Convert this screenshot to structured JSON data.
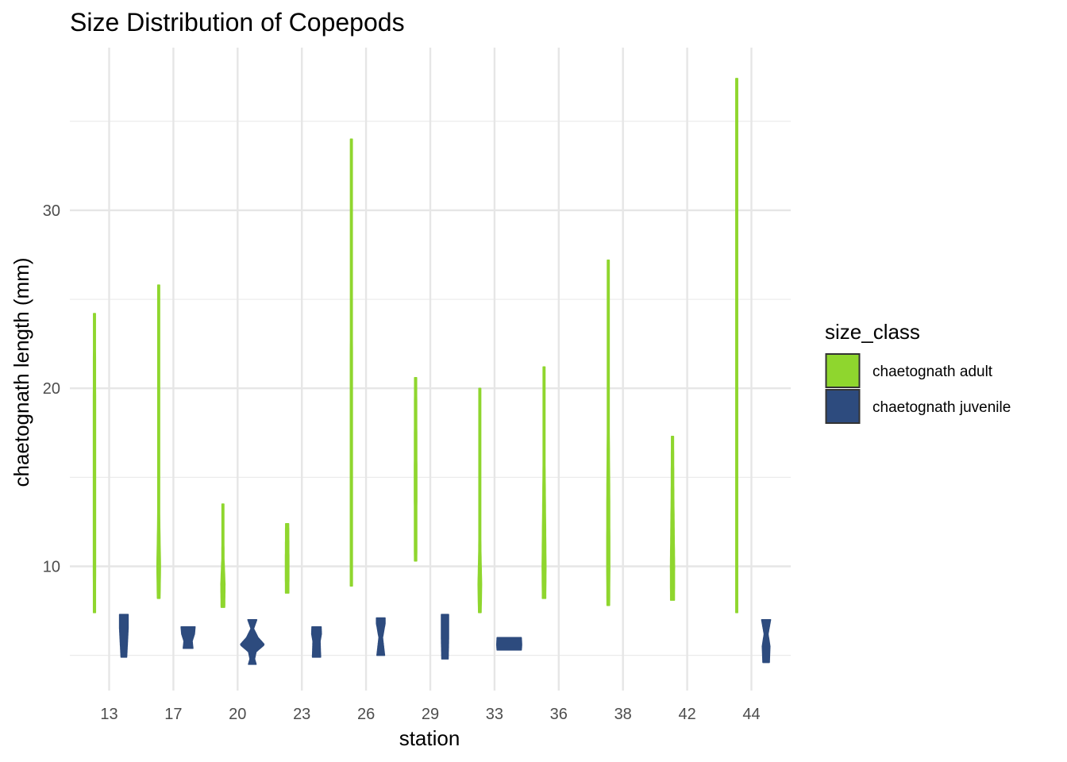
{
  "chart_data": {
    "type": "violin",
    "title": "Size Distribution of Copepods",
    "xlabel": "station",
    "ylabel": "chaetognath length (mm)",
    "categories": [
      "13",
      "17",
      "20",
      "23",
      "26",
      "29",
      "33",
      "36",
      "38",
      "42",
      "44"
    ],
    "ylim": [
      3,
      40
    ],
    "yticks": [
      10,
      20,
      30
    ],
    "grid": true,
    "legend": {
      "title": "size_class",
      "position": "right",
      "entries": [
        "chaetognath adult",
        "chaetognath juvenile"
      ]
    },
    "series": [
      {
        "name": "chaetognath adult",
        "color": "#8fd62e",
        "side": "left",
        "violins": [
          {
            "category": "13",
            "min": 7.4,
            "max": 24.2,
            "profile": [
              [
                7.4,
                0.08
              ],
              [
                12,
                0.09
              ],
              [
                18,
                0.09
              ],
              [
                24.2,
                0.07
              ]
            ]
          },
          {
            "category": "17",
            "min": 8.2,
            "max": 25.8,
            "profile": [
              [
                8.2,
                0.1
              ],
              [
                10,
                0.14
              ],
              [
                12.5,
                0.08
              ],
              [
                16,
                0.06
              ],
              [
                25.8,
                0.06
              ]
            ]
          },
          {
            "category": "20",
            "min": 7.7,
            "max": 13.5,
            "profile": [
              [
                7.7,
                0.14
              ],
              [
                9,
                0.16
              ],
              [
                10.5,
                0.08
              ],
              [
                13.5,
                0.07
              ]
            ]
          },
          {
            "category": "23",
            "min": 8.5,
            "max": 12.4,
            "profile": [
              [
                8.5,
                0.13
              ],
              [
                10,
                0.14
              ],
              [
                12.4,
                0.12
              ]
            ]
          },
          {
            "category": "26",
            "min": 8.9,
            "max": 34.0,
            "profile": [
              [
                8.9,
                0.08
              ],
              [
                20,
                0.08
              ],
              [
                34,
                0.07
              ]
            ]
          },
          {
            "category": "29",
            "min": 10.3,
            "max": 20.6,
            "profile": [
              [
                10.3,
                0.09
              ],
              [
                15,
                0.1
              ],
              [
                20.6,
                0.08
              ]
            ]
          },
          {
            "category": "33",
            "min": 7.4,
            "max": 20.0,
            "profile": [
              [
                7.4,
                0.1
              ],
              [
                9,
                0.14
              ],
              [
                11,
                0.08
              ],
              [
                14,
                0.06
              ],
              [
                20,
                0.06
              ]
            ]
          },
          {
            "category": "36",
            "min": 8.2,
            "max": 21.2,
            "profile": [
              [
                8.2,
                0.13
              ],
              [
                10,
                0.15
              ],
              [
                13,
                0.11
              ],
              [
                16,
                0.07
              ],
              [
                21.2,
                0.06
              ]
            ]
          },
          {
            "category": "38",
            "min": 7.8,
            "max": 27.2,
            "profile": [
              [
                7.8,
                0.1
              ],
              [
                10,
                0.12
              ],
              [
                14,
                0.11
              ],
              [
                18,
                0.07
              ],
              [
                27.2,
                0.06
              ]
            ]
          },
          {
            "category": "42",
            "min": 8.1,
            "max": 17.3,
            "profile": [
              [
                8.1,
                0.15
              ],
              [
                10,
                0.16
              ],
              [
                12,
                0.13
              ],
              [
                14,
                0.1
              ],
              [
                17.3,
                0.08
              ]
            ]
          },
          {
            "category": "44",
            "min": 7.4,
            "max": 37.4,
            "profile": [
              [
                7.4,
                0.07
              ],
              [
                20,
                0.07
              ],
              [
                37.4,
                0.06
              ]
            ]
          }
        ]
      },
      {
        "name": "chaetognath juvenile",
        "color": "#2d4b7e",
        "side": "right",
        "violins": [
          {
            "category": "13",
            "min": 4.9,
            "max": 7.3,
            "profile": [
              [
                4.9,
                0.22
              ],
              [
                6.0,
                0.3
              ],
              [
                6.6,
                0.34
              ],
              [
                7.3,
                0.34
              ]
            ]
          },
          {
            "category": "17",
            "min": 5.4,
            "max": 6.6,
            "profile": [
              [
                5.4,
                0.38
              ],
              [
                5.8,
                0.32
              ],
              [
                6.2,
                0.5
              ],
              [
                6.6,
                0.55
              ]
            ]
          },
          {
            "category": "20",
            "min": 4.5,
            "max": 7.0,
            "profile": [
              [
                4.5,
                0.3
              ],
              [
                4.8,
                0.18
              ],
              [
                5.2,
                0.3
              ],
              [
                5.6,
                0.95
              ],
              [
                6.0,
                0.45
              ],
              [
                6.5,
                0.1
              ],
              [
                7.0,
                0.35
              ]
            ]
          },
          {
            "category": "23",
            "min": 4.9,
            "max": 6.6,
            "profile": [
              [
                4.9,
                0.32
              ],
              [
                5.3,
                0.3
              ],
              [
                5.8,
                0.28
              ],
              [
                6.2,
                0.38
              ],
              [
                6.6,
                0.36
              ]
            ]
          },
          {
            "category": "26",
            "min": 5.0,
            "max": 7.1,
            "profile": [
              [
                5.0,
                0.3
              ],
              [
                6.0,
                0.14
              ],
              [
                6.8,
                0.34
              ],
              [
                7.1,
                0.34
              ]
            ]
          },
          {
            "category": "29",
            "min": 4.8,
            "max": 7.3,
            "profile": [
              [
                4.8,
                0.25
              ],
              [
                6.0,
                0.28
              ],
              [
                7.3,
                0.28
              ]
            ]
          },
          {
            "category": "33",
            "min": 5.3,
            "max": 6.0,
            "profile": [
              [
                5.3,
                0.95
              ],
              [
                5.6,
                0.98
              ],
              [
                6.0,
                0.95
              ]
            ]
          },
          {
            "category": "44",
            "min": 4.6,
            "max": 7.0,
            "profile": [
              [
                4.6,
                0.25
              ],
              [
                5.5,
                0.3
              ],
              [
                6.2,
                0.15
              ],
              [
                7.0,
                0.35
              ]
            ]
          }
        ]
      }
    ]
  }
}
